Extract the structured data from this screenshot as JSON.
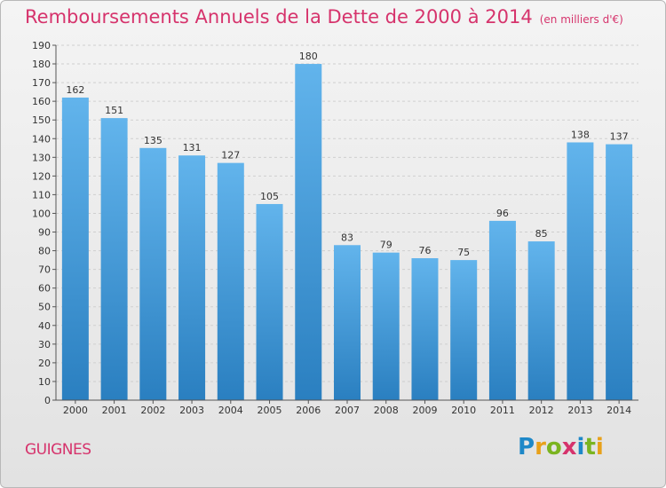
{
  "header": {
    "title": "Remboursements Annuels de la Dette de 2000 à 2014",
    "unit": "(en milliers d'€)"
  },
  "footer": {
    "commune": "GUIGNES",
    "logo": "Proxiti",
    "logo_letters": [
      {
        "char": "P",
        "color": "#1e88c8"
      },
      {
        "char": "r",
        "color": "#e8a11a"
      },
      {
        "char": "o",
        "color": "#7bb420"
      },
      {
        "char": "x",
        "color": "#d6336c"
      },
      {
        "char": "i",
        "color": "#1e88c8"
      },
      {
        "char": "t",
        "color": "#7bb420"
      },
      {
        "char": "i",
        "color": "#e8a11a"
      }
    ]
  },
  "colors": {
    "title": "#d6336c",
    "bar_top": "#62b4ec",
    "bar_bottom": "#2a7fc0",
    "grid": "#cfcfcf"
  },
  "chart_data": {
    "type": "bar",
    "title": "Remboursements Annuels de la Dette de 2000 à 2014",
    "subtitle": "(en milliers d'€)",
    "xlabel": "",
    "ylabel": "",
    "categories": [
      "2000",
      "2001",
      "2002",
      "2003",
      "2004",
      "2005",
      "2006",
      "2007",
      "2008",
      "2009",
      "2010",
      "2011",
      "2012",
      "2013",
      "2014"
    ],
    "values": [
      162,
      151,
      135,
      131,
      127,
      105,
      180,
      83,
      79,
      76,
      75,
      96,
      85,
      138,
      137
    ],
    "ylim": [
      0,
      190
    ],
    "ytick_step": 10,
    "grid": true,
    "data_labels": true
  }
}
